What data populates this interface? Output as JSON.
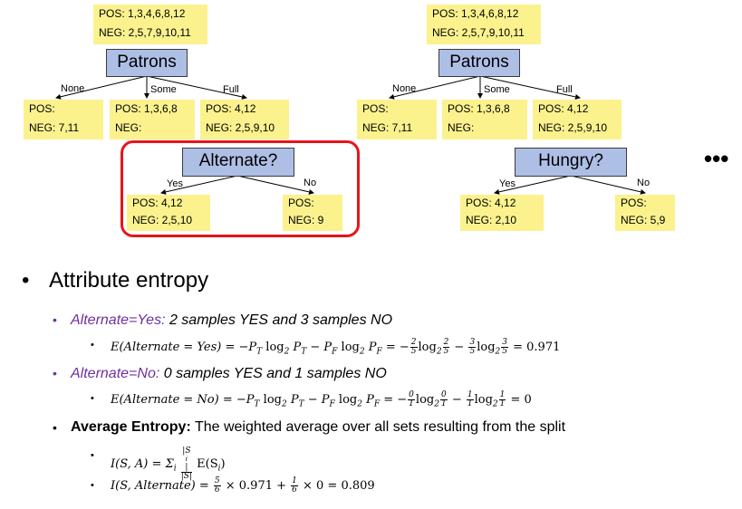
{
  "left_tree": {
    "root": {
      "pos": "POS: 1,3,4,6,8,12",
      "neg": "NEG: 2,5,7,9,10,11"
    },
    "node": "Patrons",
    "edges": [
      "None",
      "Some",
      "Full"
    ],
    "leaves": [
      {
        "pos": "POS:",
        "neg": "NEG: 7,11"
      },
      {
        "pos": "POS: 1,3,6,8",
        "neg": "NEG:"
      },
      {
        "pos": "POS: 4,12",
        "neg": "NEG: 2,5,9,10"
      }
    ],
    "sub_node": "Alternate?",
    "sub_edges": [
      "Yes",
      "No"
    ],
    "sub_leaves": [
      {
        "pos": "POS: 4,12",
        "neg": "NEG: 2,5,10"
      },
      {
        "pos": "POS:",
        "neg": "NEG: 9"
      }
    ],
    "highlight_color": "#e8141a"
  },
  "right_tree": {
    "root": {
      "pos": "POS: 1,3,4,6,8,12",
      "neg": "NEG: 2,5,7,9,10,11"
    },
    "node": "Patrons",
    "edges": [
      "None",
      "Some",
      "Full"
    ],
    "leaves": [
      {
        "pos": "POS:",
        "neg": "NEG: 7,11"
      },
      {
        "pos": "POS: 1,3,6,8",
        "neg": "NEG:"
      },
      {
        "pos": "POS: 4,12",
        "neg": "NEG: 2,5,9,10"
      }
    ],
    "sub_node": "Hungry?",
    "sub_edges": [
      "Yes",
      "No"
    ],
    "sub_leaves": [
      {
        "pos": "POS: 4,12",
        "neg": "NEG: 2,10"
      },
      {
        "pos": "POS:",
        "neg": "NEG: 5,9"
      }
    ]
  },
  "ellipsis": "•••",
  "heading": "Attribute entropy",
  "bullets": {
    "alt_yes": {
      "label": "Alternate=Yes:",
      "rest": " 2 samples YES and 3 samples NO"
    },
    "alt_yes_eq": {
      "lhs": "E(Alternate = Yes) = −P",
      "result": "= 0.971"
    },
    "alt_no": {
      "label": "Alternate=No:",
      "rest": " 0 samples YES and 1 samples NO"
    },
    "alt_no_eq": {
      "lhs": "E(Alternate = No) = −P",
      "result": "= 0"
    },
    "avg": {
      "label": "Average Entropy:",
      "rest": " The weighted average over all sets resulting from the split"
    },
    "ia_eq": "I(S, A) = Σ",
    "ialt_eq": {
      "lhs": "I(S, Alternate) = ",
      "rest1": " × 0.971 + ",
      "rest2": " × 0 = 0.809"
    }
  },
  "colors": {
    "yellow": "#fbf28e",
    "blue": "#aebfe6",
    "purple": "#7030a0",
    "red": "#e8141a"
  }
}
